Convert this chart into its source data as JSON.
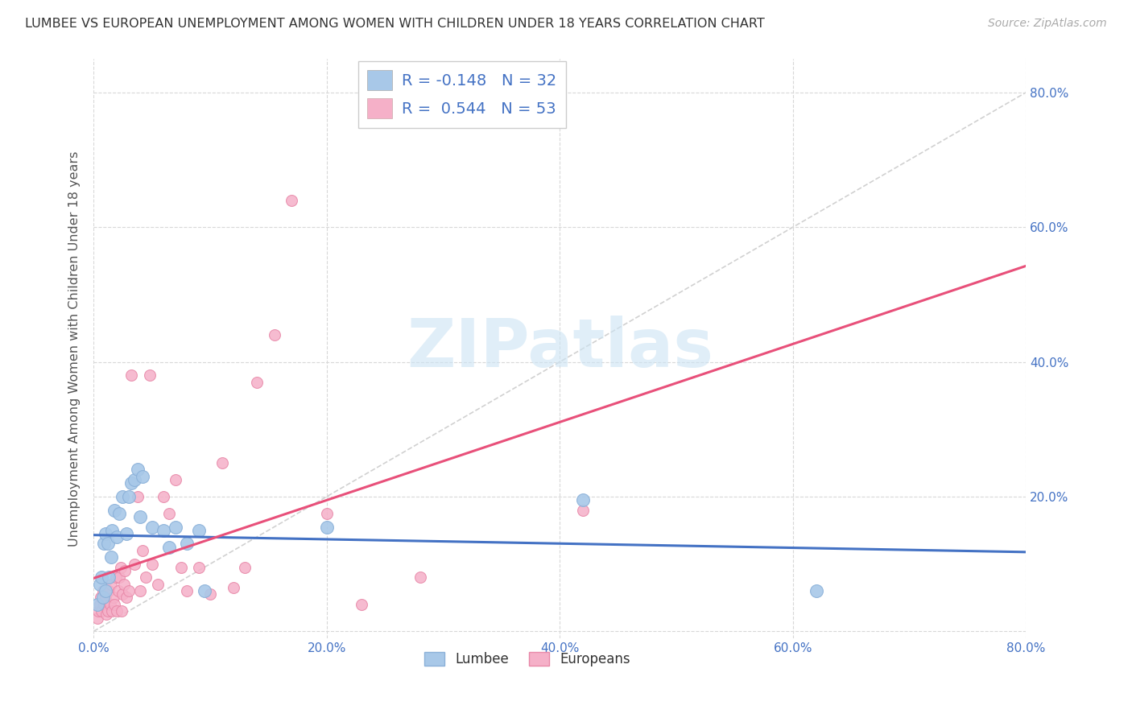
{
  "title": "LUMBEE VS EUROPEAN UNEMPLOYMENT AMONG WOMEN WITH CHILDREN UNDER 18 YEARS CORRELATION CHART",
  "source": "Source: ZipAtlas.com",
  "ylabel": "Unemployment Among Women with Children Under 18 years",
  "xlim": [
    0,
    0.8
  ],
  "ylim": [
    -0.01,
    0.85
  ],
  "xticks": [
    0.0,
    0.2,
    0.4,
    0.6,
    0.8
  ],
  "yticks": [
    0.0,
    0.2,
    0.4,
    0.6,
    0.8
  ],
  "lumbee_color": "#a8c8e8",
  "european_color": "#f5b0c8",
  "lumbee_edge_color": "#8ab0d8",
  "european_edge_color": "#e888a8",
  "lumbee_line_color": "#4472c4",
  "european_line_color": "#e8507a",
  "ref_line_color": "#cccccc",
  "text_color": "#4472c4",
  "legend_r_lumbee": "-0.148",
  "legend_n_lumbee": "32",
  "legend_r_european": "0.544",
  "legend_n_european": "53",
  "watermark_text": "ZIPatlas",
  "lumbee_x": [
    0.003,
    0.005,
    0.007,
    0.008,
    0.009,
    0.01,
    0.01,
    0.012,
    0.013,
    0.015,
    0.016,
    0.018,
    0.02,
    0.022,
    0.025,
    0.028,
    0.03,
    0.032,
    0.035,
    0.038,
    0.04,
    0.042,
    0.05,
    0.06,
    0.065,
    0.07,
    0.08,
    0.09,
    0.095,
    0.2,
    0.42,
    0.62
  ],
  "lumbee_y": [
    0.04,
    0.07,
    0.08,
    0.05,
    0.13,
    0.06,
    0.145,
    0.13,
    0.08,
    0.11,
    0.15,
    0.18,
    0.14,
    0.175,
    0.2,
    0.145,
    0.2,
    0.22,
    0.225,
    0.24,
    0.17,
    0.23,
    0.155,
    0.15,
    0.125,
    0.155,
    0.13,
    0.15,
    0.06,
    0.155,
    0.195,
    0.06
  ],
  "european_x": [
    0.003,
    0.004,
    0.005,
    0.006,
    0.007,
    0.008,
    0.009,
    0.01,
    0.011,
    0.012,
    0.013,
    0.014,
    0.015,
    0.016,
    0.017,
    0.018,
    0.019,
    0.02,
    0.021,
    0.022,
    0.023,
    0.024,
    0.025,
    0.026,
    0.027,
    0.028,
    0.03,
    0.032,
    0.035,
    0.038,
    0.04,
    0.042,
    0.045,
    0.048,
    0.05,
    0.055,
    0.06,
    0.065,
    0.07,
    0.075,
    0.08,
    0.09,
    0.1,
    0.11,
    0.12,
    0.13,
    0.14,
    0.155,
    0.17,
    0.2,
    0.23,
    0.28,
    0.42
  ],
  "european_y": [
    0.02,
    0.03,
    0.04,
    0.05,
    0.03,
    0.06,
    0.04,
    0.05,
    0.025,
    0.03,
    0.06,
    0.04,
    0.07,
    0.03,
    0.05,
    0.04,
    0.08,
    0.03,
    0.06,
    0.08,
    0.095,
    0.03,
    0.055,
    0.07,
    0.09,
    0.05,
    0.06,
    0.38,
    0.1,
    0.2,
    0.06,
    0.12,
    0.08,
    0.38,
    0.1,
    0.07,
    0.2,
    0.175,
    0.225,
    0.095,
    0.06,
    0.095,
    0.055,
    0.25,
    0.065,
    0.095,
    0.37,
    0.44,
    0.64,
    0.175,
    0.04,
    0.08,
    0.18
  ]
}
